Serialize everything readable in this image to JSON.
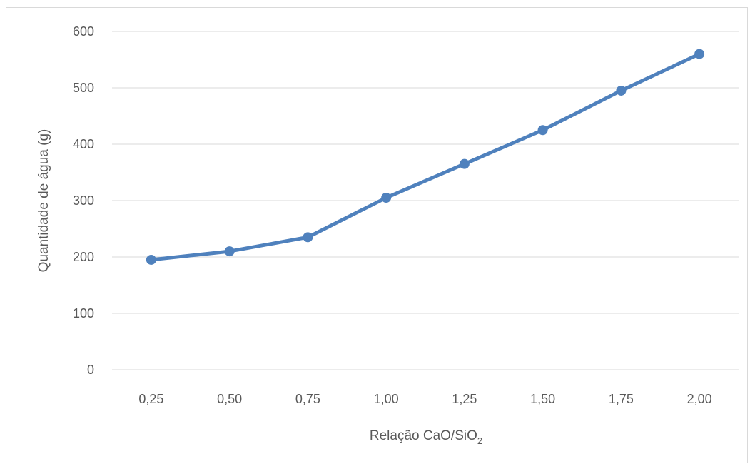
{
  "chart_data": {
    "type": "line",
    "x": [
      "0,25",
      "0,50",
      "0,75",
      "1,00",
      "1,25",
      "1,50",
      "1,75",
      "2,00"
    ],
    "series": [
      {
        "values": [
          195,
          210,
          235,
          305,
          365,
          425,
          495,
          560
        ]
      }
    ],
    "xlabel": {
      "main": "Relação CaO/SiO",
      "subscript": "2"
    },
    "ylabel": "Quantidade de água (g)",
    "ylim": [
      0,
      600
    ],
    "yticks": [
      "0",
      "100",
      "200",
      "300",
      "400",
      "500",
      "600"
    ],
    "grid": true,
    "legend": "none",
    "colors": {
      "series": "#4f81bd",
      "grid": "#d9d9d9",
      "text": "#595959"
    }
  }
}
